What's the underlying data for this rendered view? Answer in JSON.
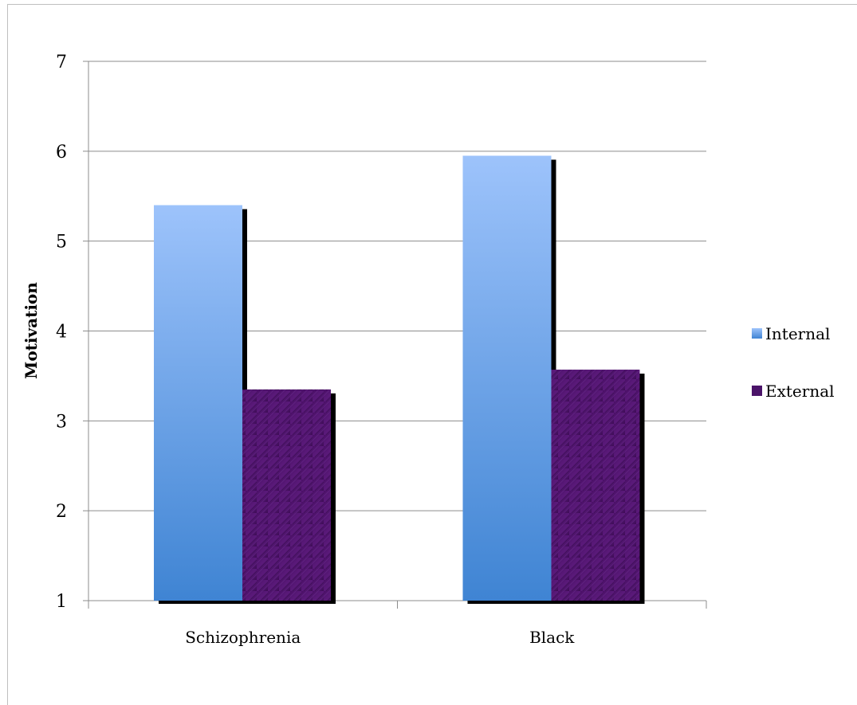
{
  "chart_data": {
    "type": "bar",
    "categories": [
      "Schizophrenia",
      "Black"
    ],
    "series": [
      {
        "name": "Internal",
        "values": [
          5.4,
          5.95
        ],
        "color": "#5b9bd5"
      },
      {
        "name": "External",
        "values": [
          3.35,
          3.57
        ],
        "color": "#4b1469"
      }
    ],
    "ylabel": "Motivation",
    "xlabel": "",
    "ylim": [
      1,
      7
    ],
    "yticks": [
      "1",
      "2",
      "3",
      "4",
      "5",
      "6",
      "7"
    ],
    "grid": true,
    "legend_position": "right"
  }
}
